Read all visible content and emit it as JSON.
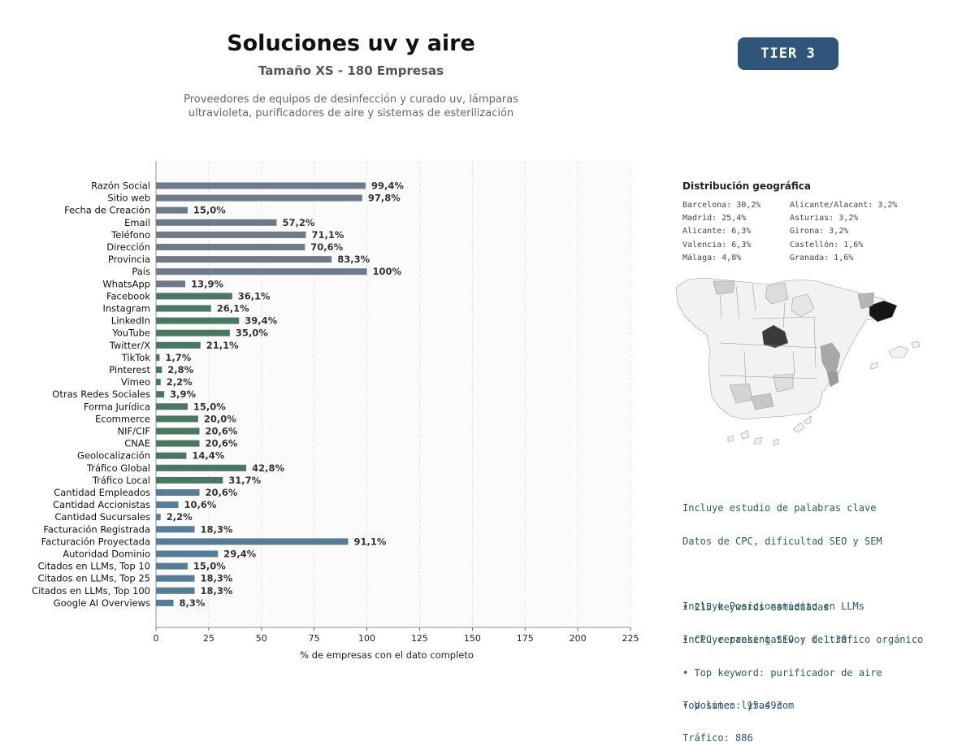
{
  "header": {
    "title": "Soluciones uv y aire",
    "subtitle": "Tamaño XS - 180 Empresas",
    "description_line1": "Proveedores de equipos de desinfección y curado uv, lámparas",
    "description_line2": "ultravioleta, purificadores de aire y sistemas de esterilización",
    "tier": "TIER 3"
  },
  "colors": {
    "basic": "#6e7a87",
    "social": "#4a7664",
    "business": "#587b96",
    "tier_bg": "#2f557a",
    "keywords_text": "#2e5e4e",
    "llm_text": "#2f557a"
  },
  "chart_data": {
    "type": "bar",
    "orientation": "horizontal",
    "xlabel": "% de empresas con el dato completo",
    "xlim": [
      0,
      225
    ],
    "xticks": [
      0,
      25,
      50,
      75,
      100,
      125,
      150,
      175,
      200,
      225
    ],
    "grid": "vertical dashed",
    "categories": [
      "Razón Social",
      "Sitio web",
      "Fecha de Creación",
      "Email",
      "Teléfono",
      "Dirección",
      "Provincia",
      "País",
      "WhatsApp",
      "Facebook",
      "Instagram",
      "LinkedIn",
      "YouTube",
      "Twitter/X",
      "TikTok",
      "Pinterest",
      "Vimeo",
      "Otras Redes Sociales",
      "Forma Jurídica",
      "Ecommerce",
      "NIF/CIF",
      "CNAE",
      "Geolocalización",
      "Tráfico Global",
      "Tráfico Local",
      "Cantidad Empleados",
      "Cantidad Accionistas",
      "Cantidad Sucursales",
      "Facturación Registrada",
      "Facturación Proyectada",
      "Autoridad Dominio",
      "Citados en LLMs, Top 10",
      "Citados en LLMs, Top 25",
      "Citados en LLMs, Top 100",
      "Google AI Overviews"
    ],
    "values": [
      99.4,
      97.8,
      15.0,
      57.2,
      71.1,
      70.6,
      83.3,
      100,
      13.9,
      36.1,
      26.1,
      39.4,
      35.0,
      21.1,
      1.7,
      2.8,
      2.2,
      3.9,
      15.0,
      20.0,
      20.6,
      20.6,
      14.4,
      42.8,
      31.7,
      20.6,
      10.6,
      2.2,
      18.3,
      91.1,
      29.4,
      15.0,
      18.3,
      18.3,
      8.3
    ],
    "value_labels": [
      "99,4%",
      "97,8%",
      "15,0%",
      "57,2%",
      "71,1%",
      "70,6%",
      "83,3%",
      "100%",
      "13,9%",
      "36,1%",
      "26,1%",
      "39,4%",
      "35,0%",
      "21,1%",
      "1,7%",
      "2,8%",
      "2,2%",
      "3,9%",
      "15,0%",
      "20,0%",
      "20,6%",
      "20,6%",
      "14,4%",
      "42,8%",
      "31,7%",
      "20,6%",
      "10,6%",
      "2,2%",
      "18,3%",
      "91,1%",
      "29,4%",
      "15,0%",
      "18,3%",
      "18,3%",
      "8,3%"
    ],
    "groups": [
      "basic",
      "basic",
      "basic",
      "basic",
      "basic",
      "basic",
      "basic",
      "basic",
      "basic",
      "social",
      "social",
      "social",
      "social",
      "social",
      "social",
      "social",
      "social",
      "social",
      "social",
      "social",
      "social",
      "social",
      "social",
      "social",
      "social",
      "business",
      "business",
      "business",
      "business",
      "business",
      "business",
      "business",
      "business",
      "business",
      "business"
    ]
  },
  "geo": {
    "title": "Distribución geográfica",
    "left": [
      "Barcelona: 30,2%",
      "Madrid: 25,4%",
      "Alicante: 6,3%",
      "Valencia: 6,3%",
      "Málaga: 4,8%"
    ],
    "right": [
      "Alicante/Alacant: 3,2%",
      "Asturias: 3,2%",
      "Girona: 3,2%",
      "Castellón: 1,6%",
      "Granada: 1,6%"
    ]
  },
  "keywords": {
    "line1": "Incluye estudio de palabras clave",
    "line2": "Datos de CPC, dificultad SEO y SEM",
    "bullets": [
      "• 215 keywords estudiadas",
      "• CPC representativo: € 1.30",
      "• Top keyword: purificador de aire",
      "• Volumen: 15.493"
    ]
  },
  "llm": {
    "line1": "Incluye Posicionamiento en LLMs",
    "line2": "Incluye ranking SEO y de tráfico orgánico",
    "top_site": "Top site: lyras.com",
    "traffic": "Tráfico: 886"
  }
}
